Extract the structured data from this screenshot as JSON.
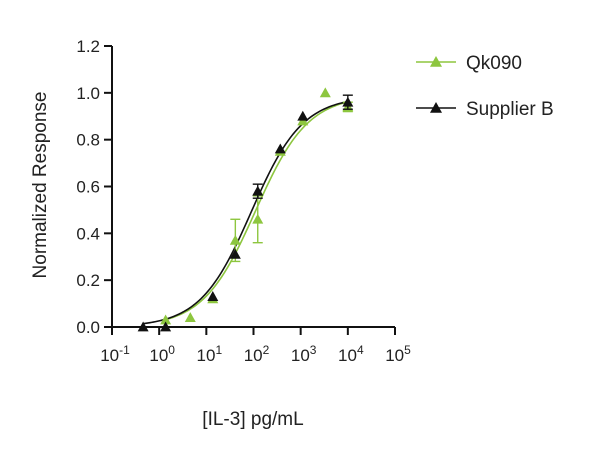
{
  "chart_data": {
    "type": "scatter",
    "title": "",
    "xlabel": "[IL-3] pg/mL",
    "ylabel": "Normalized Response",
    "xscale": "log",
    "xlim": [
      0.1,
      100000
    ],
    "ylim": [
      0.0,
      1.2
    ],
    "x_ticks": [
      {
        "base": "10",
        "exp": "-1"
      },
      {
        "base": "10",
        "exp": "0"
      },
      {
        "base": "10",
        "exp": "1"
      },
      {
        "base": "10",
        "exp": "2"
      },
      {
        "base": "10",
        "exp": "3"
      },
      {
        "base": "10",
        "exp": "4"
      },
      {
        "base": "10",
        "exp": "5"
      }
    ],
    "y_ticks": [
      "0.0",
      "0.2",
      "0.4",
      "0.6",
      "0.8",
      "1.0",
      "1.2"
    ],
    "grid": false,
    "legend_position": "top-right",
    "series": [
      {
        "name": "Qk090",
        "color": "#8dc63f",
        "marker": "triangle",
        "x": [
          1.37,
          4.57,
          13.7,
          41.2,
          123,
          370,
          1110,
          3330,
          10000
        ],
        "y": [
          0.03,
          0.04,
          0.12,
          0.37,
          0.46,
          0.75,
          0.88,
          1.0,
          0.94
        ],
        "error": [
          0,
          0,
          0,
          0.09,
          0.1,
          0,
          0,
          0,
          0.02
        ]
      },
      {
        "name": "Supplier B",
        "color": "#111111",
        "marker": "triangle",
        "x": [
          0.457,
          1.37,
          13.7,
          41.2,
          123,
          370,
          1110,
          10000
        ],
        "y": [
          0.0,
          0.0,
          0.13,
          0.31,
          0.58,
          0.76,
          0.9,
          0.96
        ],
        "error": [
          0,
          0,
          0,
          0,
          0.03,
          0,
          0,
          0.03
        ]
      }
    ],
    "fits": [
      {
        "series": "Qk090",
        "bottom": 0.0,
        "top": 0.99,
        "ec50": 110,
        "hill": 0.78
      },
      {
        "series": "Supplier B",
        "bottom": 0.0,
        "top": 0.985,
        "ec50": 90,
        "hill": 0.8
      }
    ]
  }
}
